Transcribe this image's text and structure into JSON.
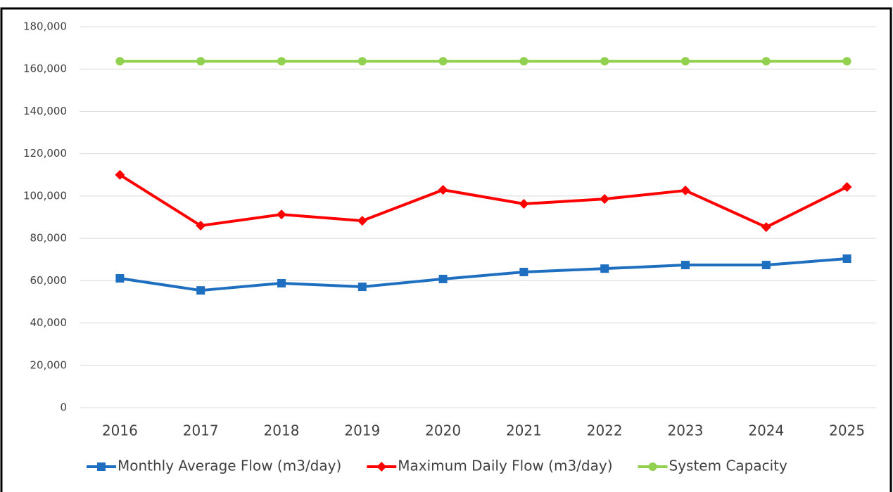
{
  "chart_data": {
    "type": "line",
    "categories": [
      "2016",
      "2017",
      "2018",
      "2019",
      "2020",
      "2021",
      "2022",
      "2023",
      "2024",
      "2025"
    ],
    "series": [
      {
        "name": "Monthly Average Flow (m3/day)",
        "color": "#1f6fc0",
        "marker": "square",
        "values": [
          61100,
          55400,
          58800,
          57100,
          60800,
          64100,
          65700,
          67400,
          67400,
          70400
        ]
      },
      {
        "name": "Maximum Daily Flow (m3/day)",
        "color": "#ff0000",
        "marker": "diamond",
        "values": [
          110000,
          86000,
          91300,
          88300,
          102900,
          96300,
          98600,
          102600,
          85300,
          104300
        ]
      },
      {
        "name": "System Capacity",
        "color": "#92d050",
        "marker": "circle",
        "values": [
          163700,
          163700,
          163700,
          163700,
          163700,
          163700,
          163700,
          163700,
          163700,
          163700
        ]
      }
    ],
    "ylim": [
      0,
      180000
    ],
    "yticks": [
      0,
      {
        "value": 20000,
        "label": "20,000"
      },
      {
        "value": 40000,
        "label": "40,000"
      },
      {
        "value": 60000,
        "label": "60,000"
      },
      {
        "value": 80000,
        "label": "80,000"
      },
      {
        "value": 100000,
        "label": "100,000"
      },
      {
        "value": 120000,
        "label": "120,000"
      },
      {
        "value": 140000,
        "label": "140,000"
      },
      {
        "value": 160000,
        "label": "160,000"
      },
      {
        "value": 180000,
        "label": "180,000"
      }
    ],
    "grid": true,
    "legend": "bottom"
  }
}
